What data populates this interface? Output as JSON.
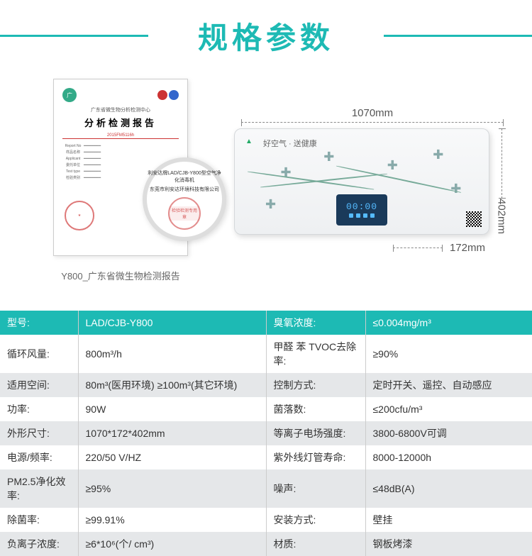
{
  "header": {
    "title": "规格参数"
  },
  "certificate": {
    "org": "广东省微生物分析检测中心",
    "title": "分析检测报告",
    "redbar": "2015FM5116h",
    "zoom_line1": "利安达牌LAD/CJB-Y800型空气净化消毒机",
    "zoom_line2": "东莞市利安达环境科技有限公司",
    "zoom_stamp": "检验检测专用章",
    "caption": "Y800_广东省微生物检测报告"
  },
  "device": {
    "brand_text": "好空气 · 送健康",
    "lcd_time": "00:00",
    "dim_width": "1070mm",
    "dim_height": "402mm",
    "dim_depth": "172mm"
  },
  "specs": {
    "rows": [
      {
        "l1": "型号:",
        "v1": "LAD/CJB-Y800",
        "l2": "臭氧浓度:",
        "v2": "≤0.004mg/m³"
      },
      {
        "l1": "循环风量:",
        "v1": "800m³/h",
        "l2": "甲醛 苯 TVOC去除率:",
        "v2": "≥90%"
      },
      {
        "l1": "适用空间:",
        "v1": "80m³(医用环境)  ≥100m³(其它环境)",
        "l2": "控制方式:",
        "v2": "定时开关、遥控、自动感应"
      },
      {
        "l1": "功率:",
        "v1": "90W",
        "l2": "菌落数:",
        "v2": "≤200cfu/m³"
      },
      {
        "l1": "外形尺寸:",
        "v1": "1070*172*402mm",
        "l2": "等离子电场强度:",
        "v2": "3800-6800V可调"
      },
      {
        "l1": "电源/频率:",
        "v1": "220/50 V/HZ",
        "l2": "紫外线灯管寿命:",
        "v2": "8000-12000h"
      },
      {
        "l1": "PM2.5净化效率:",
        "v1": "≥95%",
        "l2": "噪声:",
        "v2": "≤48dB(A)"
      },
      {
        "l1": "除菌率:",
        "v1": "≥99.91%",
        "l2": "安装方式:",
        "v2": "壁挂"
      },
      {
        "l1": "负离子浓度:",
        "v1": "≥6*10⁶(个/ cm³)",
        "l2": "材质:",
        "v2": "钢板烤漆"
      }
    ]
  },
  "colors": {
    "accent": "#1dbab4",
    "row_alt": "#e5e7e9",
    "text": "#333333"
  }
}
